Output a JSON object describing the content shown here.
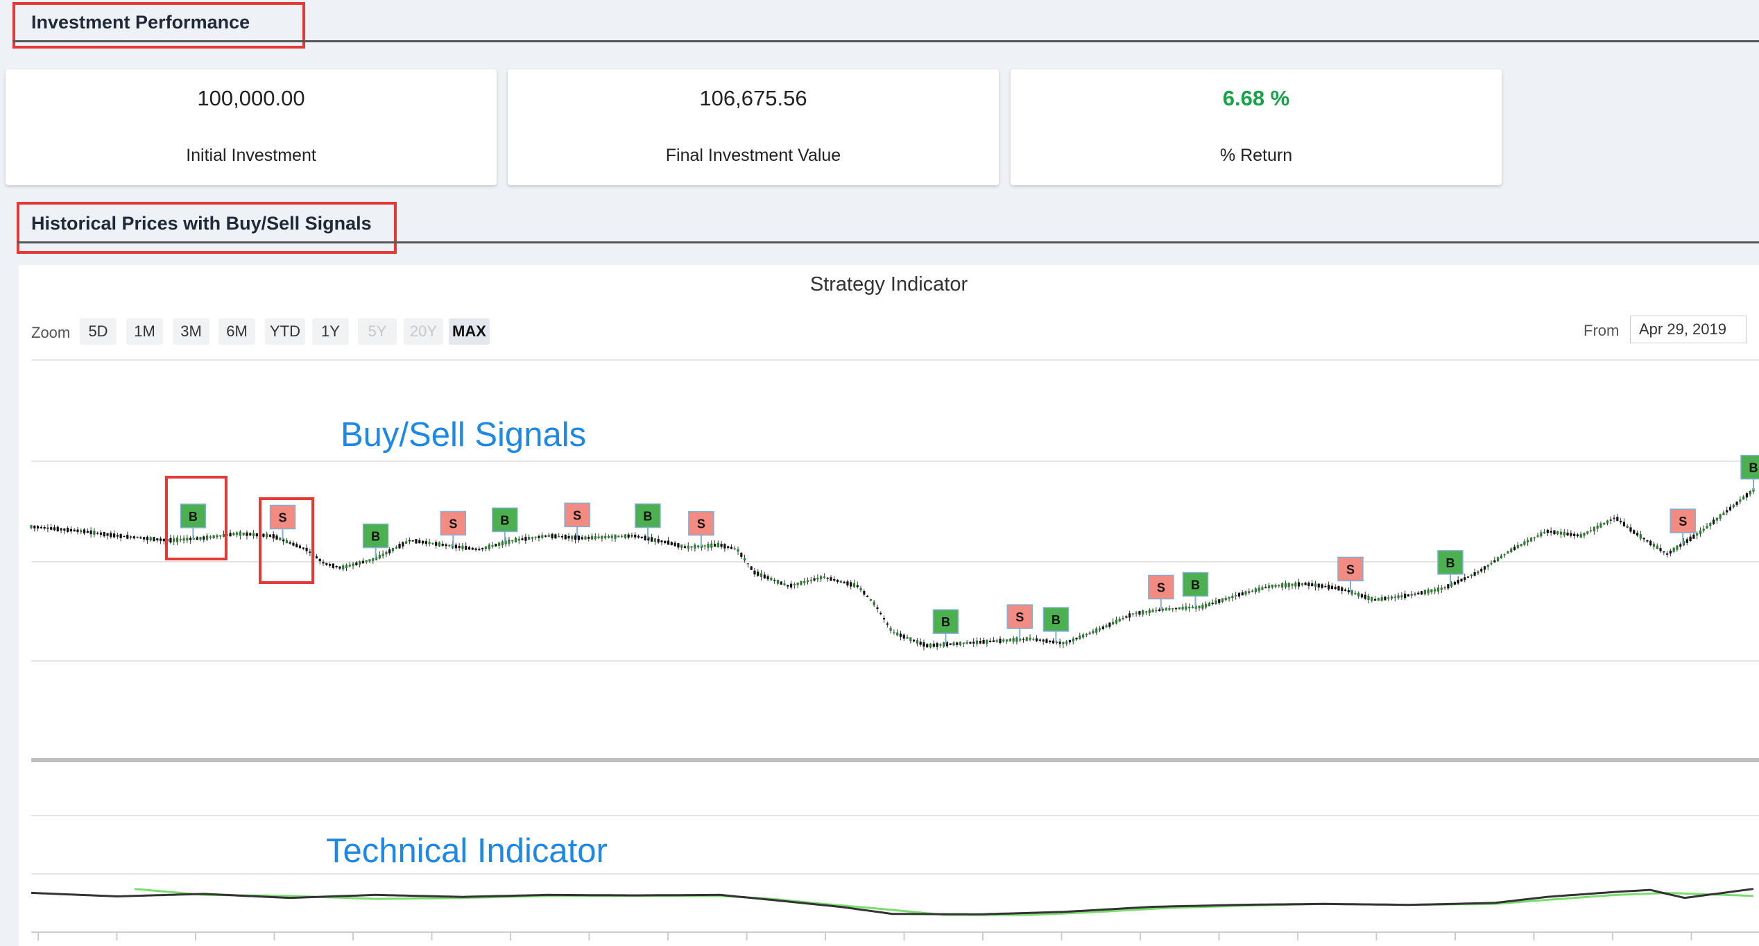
{
  "investment_section": {
    "title": "Investment Performance"
  },
  "cards": [
    {
      "value": "100,000.00",
      "label": "Initial Investment"
    },
    {
      "value": "106,675.56",
      "label": "Final Investment Value"
    },
    {
      "value": "6.68 %",
      "label": "% Return",
      "color": "#16a34a"
    }
  ],
  "history_section": {
    "title": "Historical Prices with Buy/Sell Signals"
  },
  "chart_data": {
    "type": "candlestick",
    "title": "Strategy Indicator",
    "zoom": {
      "label": "Zoom",
      "buttons": [
        {
          "label": "5D",
          "state": "normal"
        },
        {
          "label": "1M",
          "state": "normal"
        },
        {
          "label": "3M",
          "state": "normal"
        },
        {
          "label": "6M",
          "state": "normal"
        },
        {
          "label": "YTD",
          "state": "normal"
        },
        {
          "label": "1Y",
          "state": "normal"
        },
        {
          "label": "5Y",
          "state": "disabled"
        },
        {
          "label": "20Y",
          "state": "disabled"
        },
        {
          "label": "MAX",
          "state": "active"
        }
      ]
    },
    "range": {
      "from_label": "From",
      "from_value": "Apr 29, 2019"
    },
    "annotations": [
      "Buy/Sell Signals",
      "Technical Indicator"
    ],
    "colors": {
      "up": "#2e7d32",
      "down": "#111111",
      "buy": "#4caf50",
      "sell": "#f28b82",
      "indicator_fast": "#333333",
      "indicator_slow": "#7ddc6f",
      "highlight": "#e53935",
      "annotation": "#1e88e5"
    },
    "price_profile": [
      [
        0,
        82
      ],
      [
        0.03,
        80
      ],
      [
        0.05,
        78
      ],
      [
        0.08,
        76
      ],
      [
        0.1,
        77
      ],
      [
        0.12,
        79
      ],
      [
        0.14,
        78
      ],
      [
        0.16,
        72
      ],
      [
        0.17,
        66
      ],
      [
        0.18,
        64
      ],
      [
        0.2,
        68
      ],
      [
        0.22,
        76
      ],
      [
        0.24,
        74
      ],
      [
        0.26,
        72
      ],
      [
        0.28,
        76
      ],
      [
        0.3,
        78
      ],
      [
        0.32,
        77
      ],
      [
        0.35,
        78
      ],
      [
        0.37,
        75
      ],
      [
        0.38,
        73
      ],
      [
        0.4,
        74
      ],
      [
        0.41,
        72
      ],
      [
        0.42,
        62
      ],
      [
        0.44,
        56
      ],
      [
        0.46,
        60
      ],
      [
        0.48,
        56
      ],
      [
        0.49,
        48
      ],
      [
        0.5,
        36
      ],
      [
        0.52,
        30
      ],
      [
        0.54,
        31
      ],
      [
        0.56,
        32
      ],
      [
        0.58,
        33
      ],
      [
        0.6,
        31
      ],
      [
        0.62,
        37
      ],
      [
        0.64,
        44
      ],
      [
        0.66,
        46
      ],
      [
        0.68,
        47
      ],
      [
        0.7,
        52
      ],
      [
        0.72,
        56
      ],
      [
        0.74,
        57
      ],
      [
        0.76,
        55
      ],
      [
        0.78,
        50
      ],
      [
        0.8,
        52
      ],
      [
        0.82,
        55
      ],
      [
        0.84,
        62
      ],
      [
        0.86,
        72
      ],
      [
        0.88,
        80
      ],
      [
        0.9,
        78
      ],
      [
        0.92,
        86
      ],
      [
        0.93,
        80
      ],
      [
        0.95,
        70
      ],
      [
        0.97,
        80
      ],
      [
        1.0,
        98
      ]
    ],
    "signals": [
      {
        "type": "B",
        "t": 0.094
      },
      {
        "type": "S",
        "t": 0.146
      },
      {
        "type": "B",
        "t": 0.2
      },
      {
        "type": "S",
        "t": 0.245
      },
      {
        "type": "B",
        "t": 0.275
      },
      {
        "type": "S",
        "t": 0.317
      },
      {
        "type": "B",
        "t": 0.358
      },
      {
        "type": "S",
        "t": 0.389
      },
      {
        "type": "B",
        "t": 0.531
      },
      {
        "type": "S",
        "t": 0.574
      },
      {
        "type": "B",
        "t": 0.595
      },
      {
        "type": "S",
        "t": 0.656
      },
      {
        "type": "B",
        "t": 0.676
      },
      {
        "type": "S",
        "t": 0.766
      },
      {
        "type": "B",
        "t": 0.824
      },
      {
        "type": "S",
        "t": 0.959
      },
      {
        "type": "B",
        "t": 1.0
      }
    ],
    "indicator_fast": [
      [
        0,
        48
      ],
      [
        0.05,
        41
      ],
      [
        0.1,
        46
      ],
      [
        0.15,
        38
      ],
      [
        0.2,
        44
      ],
      [
        0.25,
        40
      ],
      [
        0.3,
        44
      ],
      [
        0.35,
        43
      ],
      [
        0.4,
        44
      ],
      [
        0.43,
        34
      ],
      [
        0.47,
        20
      ],
      [
        0.5,
        6
      ],
      [
        0.55,
        5
      ],
      [
        0.6,
        10
      ],
      [
        0.65,
        20
      ],
      [
        0.7,
        24
      ],
      [
        0.75,
        26
      ],
      [
        0.8,
        24
      ],
      [
        0.85,
        28
      ],
      [
        0.88,
        40
      ],
      [
        0.92,
        50
      ],
      [
        0.94,
        54
      ],
      [
        0.96,
        38
      ],
      [
        1.0,
        56
      ]
    ],
    "indicator_slow": [
      [
        0.06,
        56
      ],
      [
        0.1,
        44
      ],
      [
        0.15,
        42
      ],
      [
        0.2,
        36
      ],
      [
        0.25,
        38
      ],
      [
        0.3,
        42
      ],
      [
        0.35,
        42
      ],
      [
        0.4,
        42
      ],
      [
        0.43,
        36
      ],
      [
        0.46,
        26
      ],
      [
        0.5,
        14
      ],
      [
        0.53,
        4
      ],
      [
        0.58,
        4
      ],
      [
        0.62,
        10
      ],
      [
        0.66,
        18
      ],
      [
        0.7,
        22
      ],
      [
        0.75,
        26
      ],
      [
        0.8,
        24
      ],
      [
        0.85,
        26
      ],
      [
        0.88,
        34
      ],
      [
        0.92,
        44
      ],
      [
        0.95,
        48
      ],
      [
        1.0,
        42
      ]
    ]
  }
}
